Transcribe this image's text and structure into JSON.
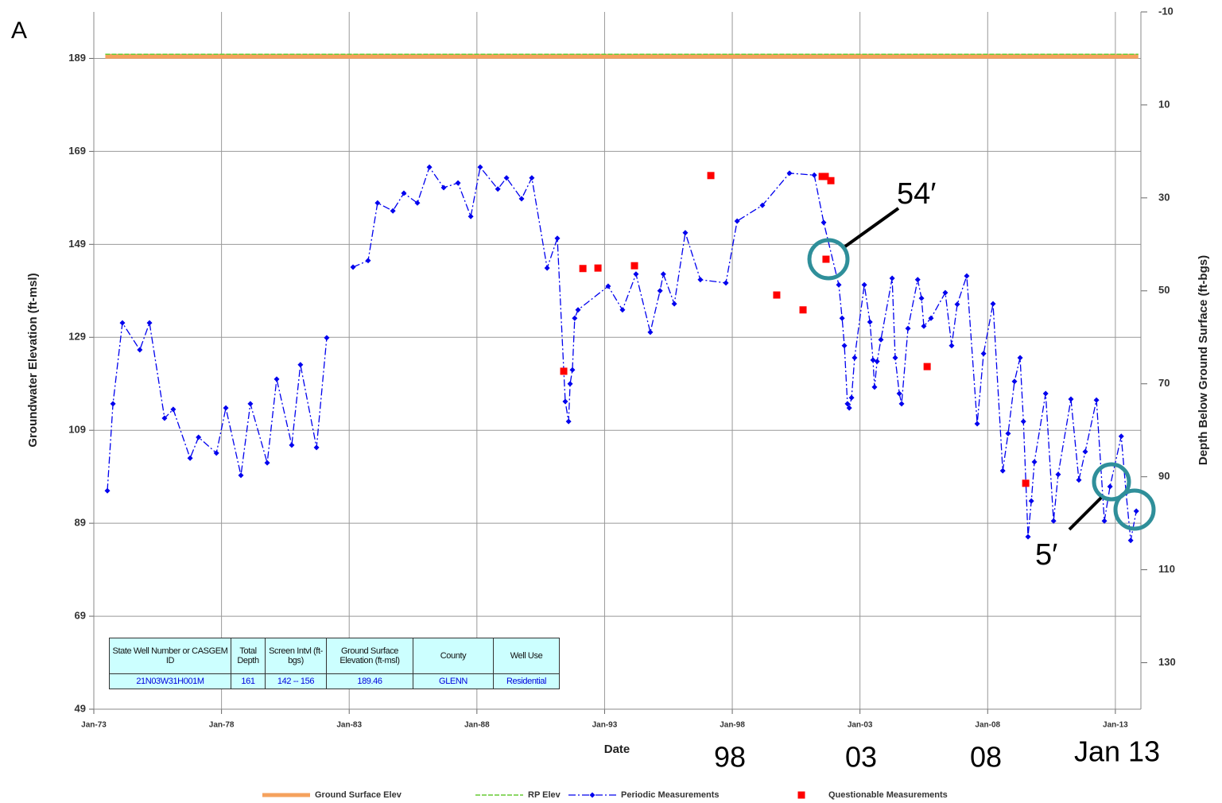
{
  "chart_data": {
    "type": "line",
    "annotations": [
      "A",
      "54′",
      "5′",
      "98",
      "03",
      "08",
      "Jan 13"
    ],
    "xlabel": "Date",
    "ylabel": "Groundwater Elevation (ft-msl)",
    "y2label": "Depth Below Ground Surface (ft-bgs)",
    "xlim": [
      1973,
      2014
    ],
    "xticks": [
      {
        "value": 1973,
        "label": "Jan-73"
      },
      {
        "value": 1978,
        "label": "Jan-78"
      },
      {
        "value": 1983,
        "label": "Jan-83"
      },
      {
        "value": 1988,
        "label": "Jan-88"
      },
      {
        "value": 1993,
        "label": "Jan-93"
      },
      {
        "value": 1998,
        "label": "Jan-98"
      },
      {
        "value": 2003,
        "label": "Jan-03"
      },
      {
        "value": 2008,
        "label": "Jan-08"
      },
      {
        "value": 2013,
        "label": "Jan-13"
      }
    ],
    "ylim": [
      49,
      199
    ],
    "yticks": [
      49,
      69,
      89,
      109,
      129,
      149,
      169,
      189
    ],
    "y2lim": [
      140,
      -10
    ],
    "y2ticks": [
      -10,
      10,
      30,
      50,
      70,
      90,
      110,
      130
    ],
    "grid": true,
    "legend": "bottom",
    "series": [
      {
        "name": "Ground Surface Elev",
        "color": "#f5a25d",
        "width": 6,
        "x": [
          1973.45,
          2013.9
        ],
        "values": [
          189.46,
          189.46
        ]
      },
      {
        "name": "RP Elev",
        "color": "#66cc33",
        "width": 1.5,
        "dash": true,
        "x": [
          1973.45,
          2013.9
        ],
        "values": [
          189.9,
          189.9
        ]
      },
      {
        "name": "Periodic Measurements",
        "color": "#0000ee",
        "width": 1.3,
        "dashdot": true,
        "marker": "diamond",
        "x": [
          1973.53,
          1973.75,
          1974.12,
          1974.8,
          1975.18,
          1975.77,
          1976.11,
          1976.77,
          1977.1,
          1977.8,
          1978.17,
          1978.76,
          1979.13,
          1979.79,
          1980.16,
          1980.75,
          1981.09,
          1981.72,
          1982.12,
          1982.6,
          1983.15,
          1983.74,
          1984.11,
          1984.71,
          1985.14,
          1985.67,
          1986.14,
          1986.7,
          1987.26,
          1987.76,
          1988.13,
          1988.82,
          1989.16,
          1989.75,
          1990.15,
          1990.75,
          1991.15,
          1991.46,
          1991.59,
          1991.65,
          1991.74,
          1991.83,
          1991.96,
          1993.14,
          1993.7,
          1994.23,
          1994.79,
          1995.17,
          1995.3,
          1995.73,
          1996.16,
          1996.75,
          1997.75,
          1998.19,
          1999.18,
          2000.24,
          2001.21,
          2001.58,
          2002.17,
          2002.3,
          2002.39,
          2002.51,
          2002.58,
          2002.67,
          2002.79,
          2003.17,
          2003.39,
          2003.51,
          2003.57,
          2003.67,
          2003.82,
          2004.26,
          2004.38,
          2004.54,
          2004.63,
          2004.88,
          2005.26,
          2005.41,
          2005.5,
          2005.78,
          2006.34,
          2006.59,
          2006.81,
          2007.18,
          2007.59,
          2007.84,
          2008.21,
          2008.59,
          2008.8,
          2009.05,
          2009.27,
          2009.4,
          2009.58,
          2009.71,
          2009.83,
          2010.27,
          2010.58,
          2010.76,
          2011.26,
          2011.57,
          2011.82,
          2012.26,
          2012.57,
          2012.79,
          2013.23,
          2013.42,
          2013.6,
          2013.82
        ],
        "values": [
          96.0,
          114.7,
          132.1,
          126.3,
          132.1,
          111.6,
          113.5,
          103.0,
          107.5,
          104.1,
          113.8,
          99.3,
          114.7,
          102.0,
          120.0,
          105.8,
          123.1,
          105.3,
          128.9,
          null,
          144.1,
          145.5,
          157.9,
          156.2,
          160.0,
          157.9,
          165.6,
          161.2,
          162.2,
          155.0,
          165.6,
          160.9,
          163.3,
          158.8,
          163.3,
          143.9,
          150.3,
          115.2,
          110.9,
          119.0,
          122.0,
          133.1,
          134.9,
          140.0,
          134.9,
          142.6,
          130.1,
          139.0,
          142.6,
          136.2,
          151.5,
          141.4,
          140.7,
          154.0,
          157.4,
          164.3,
          163.9,
          153.7,
          140.3,
          133.1,
          127.2,
          114.7,
          113.8,
          116.0,
          124.6,
          140.3,
          132.3,
          124.1,
          118.3,
          123.8,
          128.5,
          141.7,
          124.6,
          116.9,
          114.7,
          130.9,
          141.4,
          137.4,
          131.4,
          133.1,
          138.6,
          127.2,
          136.1,
          142.2,
          110.4,
          125.5,
          136.2,
          100.3,
          108.3,
          119.5,
          124.6,
          110.9,
          86.1,
          93.8,
          102.2,
          116.9,
          89.5,
          99.5,
          115.7,
          98.3,
          104.4,
          115.5,
          89.5,
          96.9,
          107.7,
          95.5,
          85.3,
          91.6
        ]
      },
      {
        "name": "Questionable Measurements",
        "color": "#ff0000",
        "marker": "square",
        "noline": true,
        "x": [
          1991.4,
          1992.15,
          1992.74,
          1994.17,
          1997.16,
          1999.74,
          2000.77,
          2001.52,
          2001.64,
          2001.86,
          2001.67,
          2005.63,
          2009.49
        ],
        "values": [
          121.7,
          143.8,
          143.9,
          144.4,
          163.8,
          138.1,
          134.9,
          163.6,
          163.6,
          162.7,
          145.8,
          122.7,
          97.6
        ]
      }
    ],
    "table": {
      "header": [
        "State Well Number or CASGEM ID",
        "Total Depth",
        "Screen Intvl (ft-bgs)",
        "Ground Surface Elevation (ft-msl)",
        "County",
        "Well Use"
      ],
      "row": [
        "21N03W31H001M",
        "161",
        "142 -- 156",
        "189.46",
        "GLENN",
        "Residential"
      ]
    }
  }
}
